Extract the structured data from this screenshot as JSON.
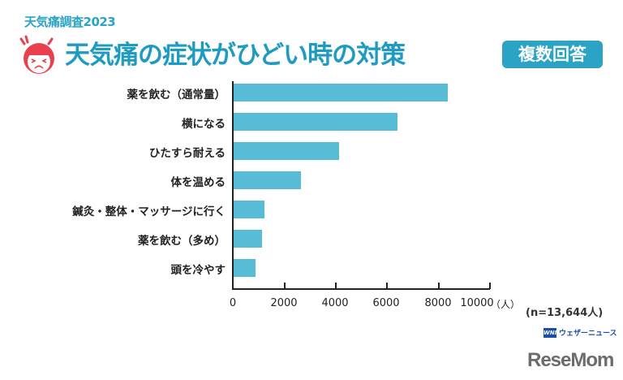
{
  "header": {
    "subtitle": "天気痛調査2023",
    "title": "天気痛の症状がひどい時の対策",
    "badge": "複数回答",
    "icon": "distressed-face-icon"
  },
  "chart_data": {
    "type": "bar",
    "orientation": "horizontal",
    "title": "天気痛の症状がひどい時の対策",
    "subtitle": "天気痛調査2023",
    "annotation": "複数回答",
    "categories": [
      "薬を飲む（通常量）",
      "横になる",
      "ひたすら耐える",
      "体を温める",
      "鍼灸・整体・マッサージに行く",
      "薬を飲む（多め）",
      "頭を冷やす"
    ],
    "values": [
      8350,
      6390,
      4110,
      2630,
      1200,
      1100,
      850
    ],
    "xlabel": "（人）",
    "ylabel": "",
    "xlim": [
      0,
      10000
    ],
    "xticks": [
      0,
      2000,
      4000,
      6000,
      8000,
      10000
    ],
    "grid": false,
    "legend": null,
    "bar_color": "#58bcd6",
    "note": "(n=13,644人)"
  },
  "axis": {
    "ticks": [
      "0",
      "2000",
      "4000",
      "6000",
      "8000",
      "10000"
    ],
    "unit": "（人）"
  },
  "footer": {
    "sample_size": "(n=13,644人)",
    "source_logo_text": "ウェザーニュース",
    "source_logo_mark": "WNI",
    "publisher": "ReseMom"
  }
}
